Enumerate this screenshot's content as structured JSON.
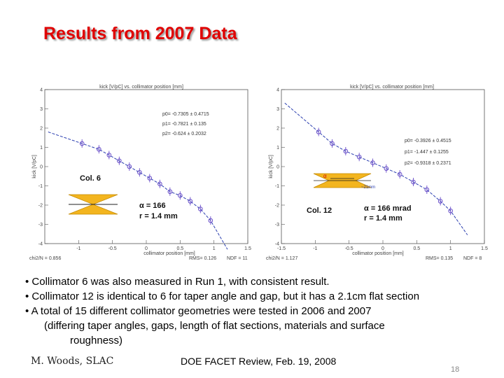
{
  "slide": {
    "title": "Results from 2007 Data",
    "bullets": [
      "• Collimator 6 was also measured in Run 1, with consistent result.",
      "• Collimator 12 is identical to 6 for taper angle and gap, but it has a 2.1cm flat section",
      "• A total of 15 different collimator geometries were tested in 2006 and 2007",
      "(differing taper angles, gaps, length of flat sections, materials and surface",
      "roughness)"
    ],
    "footer_author": "M. Woods, SLAC",
    "footer_event": "DOE FACET Review, Feb. 19, 2008",
    "page_number": "18"
  },
  "colors": {
    "title": "#e00000",
    "points": "#6a4fc9",
    "fit": "#2b3fb0",
    "taper": "#f3b51f"
  },
  "chart_data": [
    {
      "type": "scatter",
      "title": "kick [V/pC] vs. collimator position [mm]",
      "xlabel": "collimator position [mm]",
      "ylabel": "kick [V/pC]",
      "xlim": [
        -1.5,
        1.5
      ],
      "ylim": [
        -4,
        4
      ],
      "xticks": [
        "-1",
        "-0.5",
        "0",
        "0.5",
        "1",
        "1.5"
      ],
      "yticks": [
        "4",
        "3",
        "2",
        "1",
        "0",
        "-1",
        "-2",
        "-3",
        "-4"
      ],
      "x": [
        -0.95,
        -0.7,
        -0.55,
        -0.4,
        -0.25,
        -0.1,
        0.05,
        0.2,
        0.35,
        0.5,
        0.65,
        0.8,
        0.95
      ],
      "y": [
        1.2,
        0.9,
        0.6,
        0.3,
        0.0,
        -0.3,
        -0.6,
        -0.9,
        -1.3,
        -1.5,
        -1.8,
        -2.2,
        -2.8
      ],
      "fit_params": [
        "p0= -0.7305 ± 0.4715",
        "p1= -0.7821 ± 0.135",
        "p2= -0.624 ± 0.2032"
      ],
      "fit_stats": {
        "chi2_label": "chi2/N = 0.856",
        "rms_label": "RMS= 0.126",
        "ndf_label": "NDF = 11"
      },
      "collimator_label": "Col. 6",
      "params": [
        "α = 166",
        "r = 1.4 mm"
      ]
    },
    {
      "type": "scatter",
      "title": "kick [V/pC] vs. collimator position [mm]",
      "xlabel": "collimator position [mm]",
      "ylabel": "kick [V/pC]",
      "xlim": [
        -1.5,
        1.5
      ],
      "ylim": [
        -4,
        4
      ],
      "xticks": [
        "-1.5",
        "-1",
        "-0.5",
        "0",
        "0.5",
        "1",
        "1.5"
      ],
      "yticks": [
        "4",
        "3",
        "2",
        "1",
        "0",
        "-1",
        "-2",
        "-3",
        "-4"
      ],
      "x": [
        -0.95,
        -0.75,
        -0.55,
        -0.35,
        -0.15,
        0.05,
        0.25,
        0.45,
        0.65,
        0.85,
        1.0
      ],
      "y": [
        1.8,
        1.2,
        0.8,
        0.5,
        0.2,
        -0.1,
        -0.4,
        -0.8,
        -1.2,
        -1.8,
        -2.3
      ],
      "fit_params": [
        "p0= -0.3926 ± 0.4515",
        "p1= -1.447 ± 0.1255",
        "p2= -0.9318 ± 0.2371"
      ],
      "fit_stats": {
        "chi2_label": "chi2/N = 1.127",
        "rms_label": "RMS= 0.135",
        "ndf_label": "NDF = 8"
      },
      "flat_section_label": "~21mm",
      "collimator_label": "Col. 12",
      "params": [
        "α = 166 mrad",
        "r = 1.4 mm"
      ]
    }
  ]
}
